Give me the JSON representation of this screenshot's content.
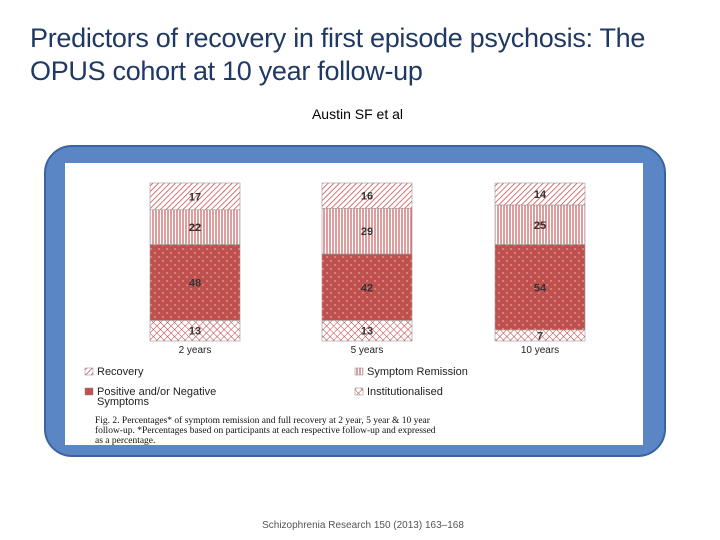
{
  "slide": {
    "title": "Predictors of recovery in first episode psychosis: The OPUS cohort at 10 year follow-up",
    "author": "Austin SF et al",
    "citation": "Schizophrenia Research 150 (2013) 163–168"
  },
  "chart_data": {
    "type": "bar",
    "stacked": true,
    "categories": [
      "2 years",
      "5 years",
      "10 years"
    ],
    "series": [
      {
        "name": "Recovery",
        "values": [
          17,
          16,
          14
        ],
        "color": "#ffffff",
        "pattern": "diagonal-hatch"
      },
      {
        "name": "Symptom Remission",
        "values": [
          22,
          29,
          25
        ],
        "color": "#ffffff",
        "pattern": "vertical-lines"
      },
      {
        "name": "Positive and/or Negative Symptoms",
        "values": [
          48,
          42,
          54
        ],
        "color": "#c0504d",
        "pattern": "dots"
      },
      {
        "name": "Institutionalised",
        "values": [
          13,
          13,
          7
        ],
        "color": "#ffffff",
        "pattern": "cross-hatch"
      }
    ],
    "legend_labels": [
      "Recovery",
      "Symptom Remission",
      "Positive and/or Negative Symptoms",
      "Institutionalised"
    ],
    "caption": {
      "line1": "Fig. 2. Percentages* of symptom remission and full recovery at 2 year, 5 year & 10 year",
      "line2": "follow-up. *Percentages based on participants at each respective follow-up and expressed",
      "line3": "as a percentage."
    },
    "legend": "below",
    "axes_visible": false,
    "grid": false,
    "colors": {
      "bar_red": "#c0504d",
      "hatch": "#b03030",
      "border": "#999999"
    }
  }
}
